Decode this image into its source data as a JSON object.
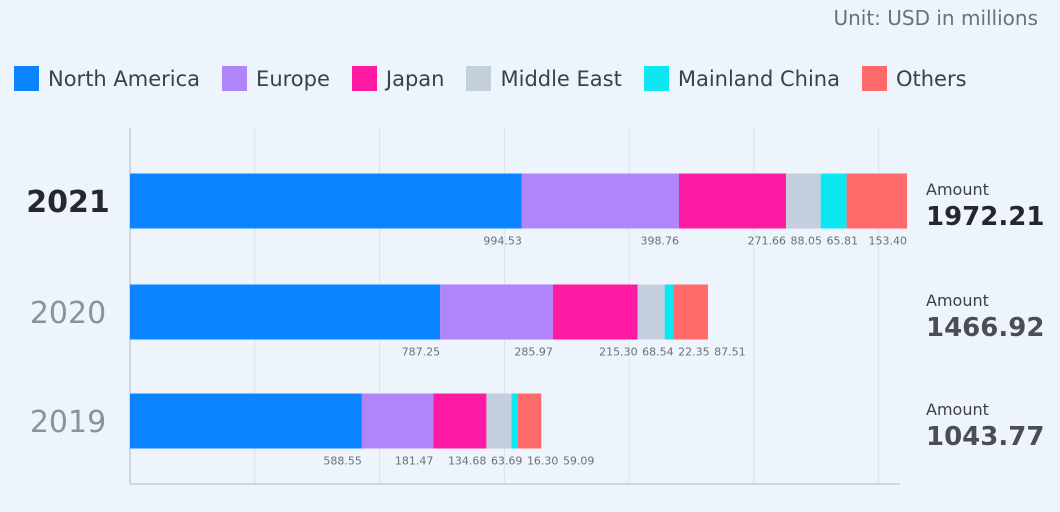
{
  "unit_label": "Unit: USD in millions",
  "colors": {
    "North America": "#0a84ff",
    "Europe": "#b085fa",
    "Japan": "#ff1aa3",
    "Middle East": "#c4cfdd",
    "Mainland China": "#0ee6f2",
    "Others": "#ff6b6b"
  },
  "chart_data": {
    "type": "bar",
    "orientation": "horizontal",
    "stacked": true,
    "categories": [
      "2021",
      "2020",
      "2019"
    ],
    "series": [
      {
        "name": "North America",
        "values": [
          994.53,
          787.25,
          588.55
        ]
      },
      {
        "name": "Europe",
        "values": [
          398.76,
          285.97,
          181.47
        ]
      },
      {
        "name": "Japan",
        "values": [
          271.66,
          215.3,
          134.68
        ]
      },
      {
        "name": "Middle East",
        "values": [
          88.05,
          68.54,
          63.69
        ]
      },
      {
        "name": "Mainland China",
        "values": [
          65.81,
          22.35,
          16.3
        ]
      },
      {
        "name": "Others",
        "values": [
          153.4,
          87.51,
          59.09
        ]
      }
    ],
    "value_labels": [
      [
        "994.53",
        "398.76",
        "271.66",
        "88.05",
        "65.81",
        "153.40"
      ],
      [
        "787.25",
        "285.97",
        "215.30",
        "68.54",
        "22.35",
        "87.51"
      ],
      [
        "588.55",
        "181.47",
        "134.68",
        "63.69",
        "16.30",
        "59.09"
      ]
    ],
    "totals": [
      {
        "caption": "Amount",
        "value": "1972.21"
      },
      {
        "caption": "Amount",
        "value": "1466.92"
      },
      {
        "caption": "Amount",
        "value": "1043.77"
      }
    ],
    "xlim": [
      0,
      1900
    ],
    "grid_step": 316.67,
    "grid": true,
    "legend_position": "top-left",
    "highlighted_category": "2021"
  }
}
